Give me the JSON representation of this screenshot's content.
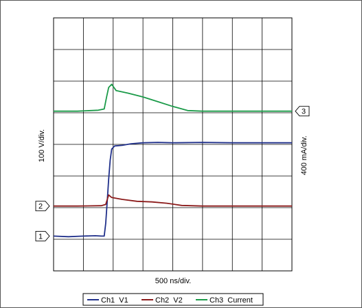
{
  "chart_data": {
    "type": "line",
    "xlabel": "500 ns/div.",
    "ylabel_left": "100 V/div.",
    "ylabel_right": "400 mA/div.",
    "grid": true,
    "x_divisions": 8,
    "y_divisions": 8,
    "xlim": [
      0,
      8
    ],
    "ylim": [
      0,
      8
    ],
    "x_unit": "div",
    "y_unit": "div",
    "legend_position": "bottom",
    "markers": [
      {
        "label": "1",
        "side": "left",
        "y": 1.1,
        "color": "#1f2f8a"
      },
      {
        "label": "2",
        "side": "left",
        "y": 2.05,
        "color": "#8b1a1a"
      },
      {
        "label": "3",
        "side": "right",
        "y": 5.05,
        "color": "#1a9a48"
      }
    ],
    "series": [
      {
        "name": "Ch1  V1",
        "color": "#1f2f8a",
        "points": [
          [
            0,
            1.1
          ],
          [
            0.5,
            1.08
          ],
          [
            1.0,
            1.1
          ],
          [
            1.4,
            1.11
          ],
          [
            1.6,
            1.1
          ],
          [
            1.7,
            1.1
          ],
          [
            1.75,
            1.5
          ],
          [
            1.8,
            2.2
          ],
          [
            1.85,
            2.9
          ],
          [
            1.9,
            3.5
          ],
          [
            1.95,
            3.85
          ],
          [
            2.05,
            3.95
          ],
          [
            2.3,
            3.97
          ],
          [
            2.6,
            4.02
          ],
          [
            3.0,
            4.05
          ],
          [
            3.5,
            4.06
          ],
          [
            4.0,
            4.05
          ],
          [
            5.0,
            4.06
          ],
          [
            6.0,
            4.05
          ],
          [
            7.0,
            4.05
          ],
          [
            8.0,
            4.05
          ]
        ]
      },
      {
        "name": "Ch2  V2",
        "color": "#8b1a1a",
        "points": [
          [
            0,
            2.05
          ],
          [
            0.8,
            2.05
          ],
          [
            1.6,
            2.06
          ],
          [
            1.75,
            2.1
          ],
          [
            1.85,
            2.4
          ],
          [
            1.95,
            2.32
          ],
          [
            2.3,
            2.26
          ],
          [
            2.8,
            2.2
          ],
          [
            3.3,
            2.18
          ],
          [
            3.8,
            2.14
          ],
          [
            4.3,
            2.07
          ],
          [
            5.0,
            2.05
          ],
          [
            6.0,
            2.05
          ],
          [
            8.0,
            2.05
          ]
        ]
      },
      {
        "name": "Ch3  Current",
        "color": "#1a9a48",
        "points": [
          [
            0,
            5.05
          ],
          [
            0.8,
            5.05
          ],
          [
            1.5,
            5.08
          ],
          [
            1.7,
            5.12
          ],
          [
            1.78,
            5.5
          ],
          [
            1.85,
            5.8
          ],
          [
            1.95,
            5.9
          ],
          [
            2.1,
            5.7
          ],
          [
            2.5,
            5.62
          ],
          [
            3.0,
            5.5
          ],
          [
            3.5,
            5.35
          ],
          [
            4.0,
            5.2
          ],
          [
            4.5,
            5.07
          ],
          [
            5.0,
            5.05
          ],
          [
            6.0,
            5.05
          ],
          [
            8.0,
            5.05
          ]
        ]
      }
    ]
  }
}
